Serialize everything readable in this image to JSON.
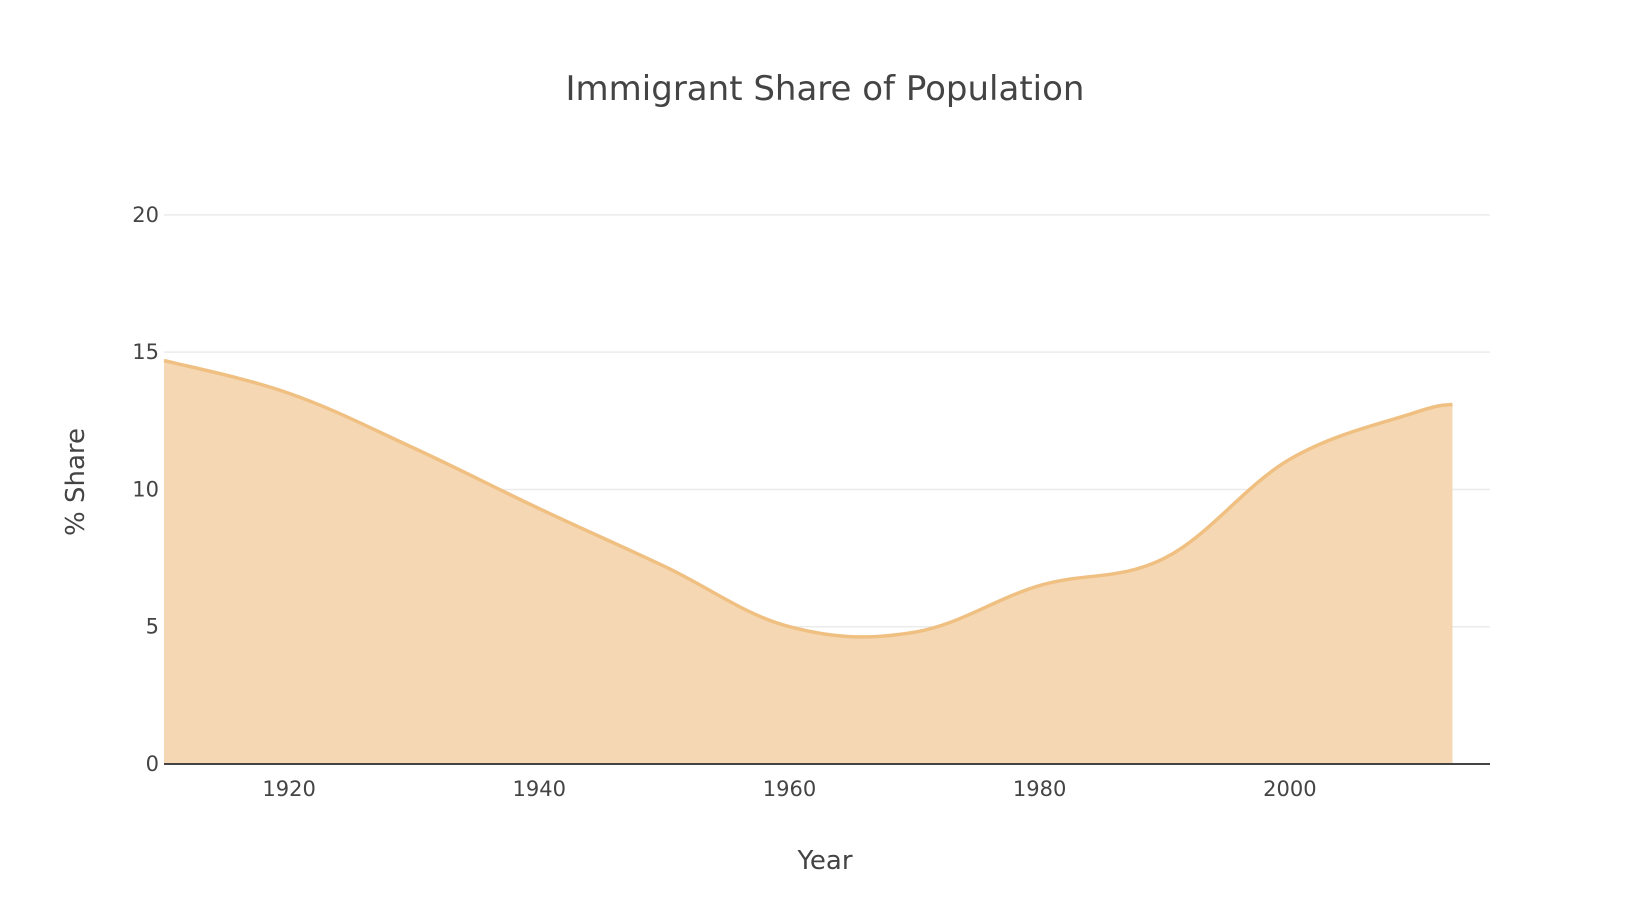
{
  "chart_data": {
    "type": "area",
    "title": "Immigrant Share of Population",
    "xlabel": "Year",
    "ylabel": "% Share",
    "xlim": [
      1910,
      2016
    ],
    "ylim": [
      0,
      22
    ],
    "x_ticks": [
      "1920",
      "1940",
      "1960",
      "1980",
      "2000"
    ],
    "y_ticks": [
      "0",
      "5",
      "10",
      "15",
      "20"
    ],
    "grid": true,
    "series": [
      {
        "x": [
          1910,
          1920,
          1930,
          1940,
          1950,
          1960,
          1970,
          1980,
          1990,
          2000,
          2010,
          2013
        ],
        "values": [
          14.7,
          13.5,
          11.5,
          9.3,
          7.2,
          5.0,
          4.8,
          6.5,
          7.5,
          11.1,
          12.8,
          13.1
        ],
        "color": "#f0c082",
        "fill_color": "#f5d8b3"
      }
    ]
  }
}
